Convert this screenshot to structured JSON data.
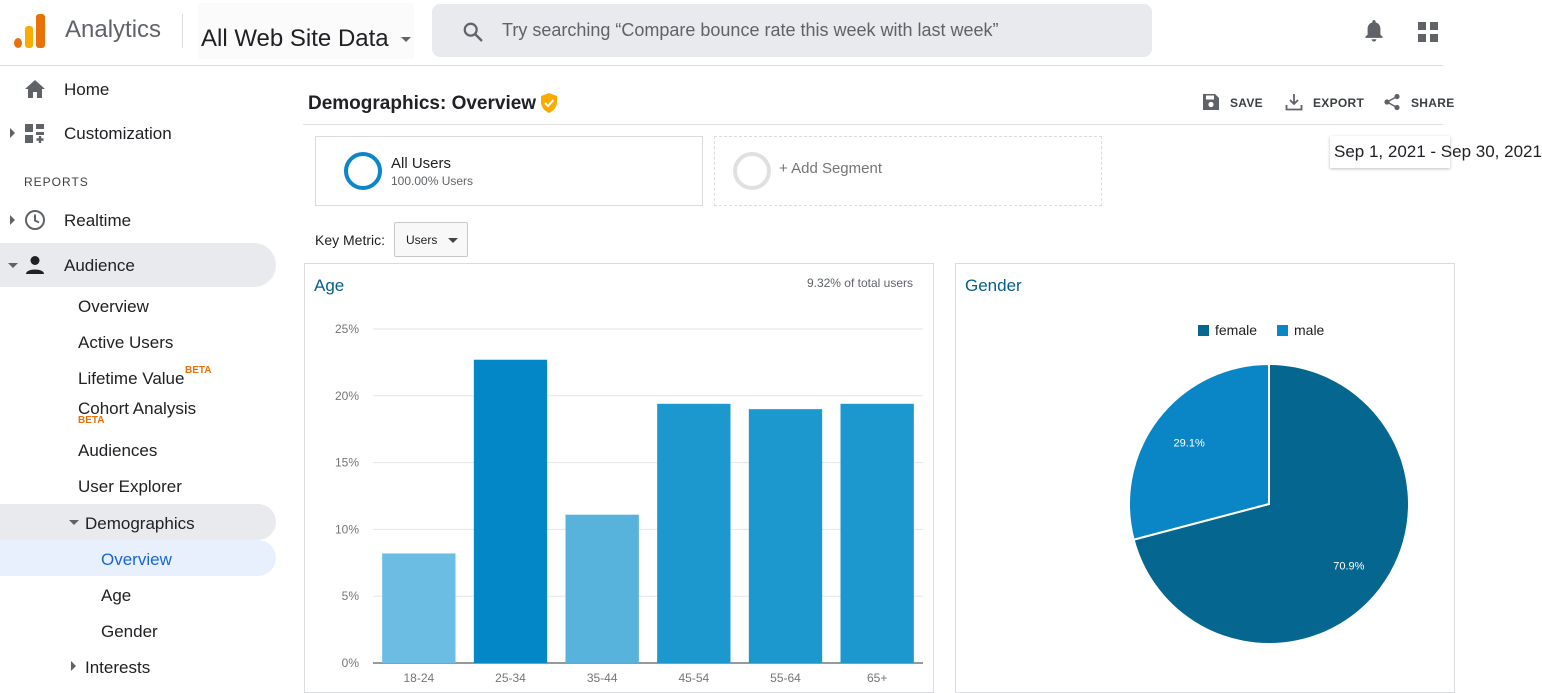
{
  "header": {
    "app_name": "Analytics",
    "property": "All Web Site Data",
    "search_placeholder": "Try searching “Compare bounce rate this week with last week”"
  },
  "sidebar": {
    "home": "Home",
    "customization": "Customization",
    "section_reports": "REPORTS",
    "realtime": "Realtime",
    "audience": "Audience",
    "audience_items": {
      "overview": "Overview",
      "active_users": "Active Users",
      "lifetime_value": "Lifetime Value",
      "cohort_analysis": "Cohort Analysis",
      "beta": "BETA",
      "audiences": "Audiences",
      "user_explorer": "User Explorer",
      "demographics": "Demographics",
      "demo_overview": "Overview",
      "demo_age": "Age",
      "demo_gender": "Gender",
      "interests": "Interests"
    }
  },
  "page": {
    "title": "Demographics: Overview",
    "save": "SAVE",
    "export": "EXPORT",
    "share": "SHARE",
    "segment_name": "All Users",
    "segment_sub": "100.00% Users",
    "add_segment": "+ Add Segment",
    "date_range": "Sep 1, 2021 - Sep 30, 2021",
    "key_metric_label": "Key Metric:",
    "key_metric_value": "Users"
  },
  "colors": {
    "accent": "#0b87c9",
    "female": "#05668f",
    "male": "#0a86c6"
  },
  "chart_data": [
    {
      "type": "bar",
      "title": "Age",
      "note": "9.32% of total users",
      "categories": [
        "18-24",
        "25-34",
        "35-44",
        "45-54",
        "55-64",
        "65+"
      ],
      "values": [
        8.2,
        22.7,
        11.1,
        19.4,
        19.0,
        19.4
      ],
      "colors": [
        "#6cbde4",
        "#0387c7",
        "#57b2dc",
        "#1c98cf",
        "#1c98cf",
        "#1c98cf"
      ],
      "ylim": [
        0,
        25
      ],
      "yticks": [
        0,
        5,
        10,
        15,
        20,
        25
      ],
      "grid": true
    },
    {
      "type": "pie",
      "title": "Gender",
      "legend_position": "top",
      "slices": [
        {
          "name": "female",
          "value": 70.9,
          "label": "70.9%"
        },
        {
          "name": "male",
          "value": 29.1,
          "label": "29.1%"
        }
      ]
    }
  ]
}
